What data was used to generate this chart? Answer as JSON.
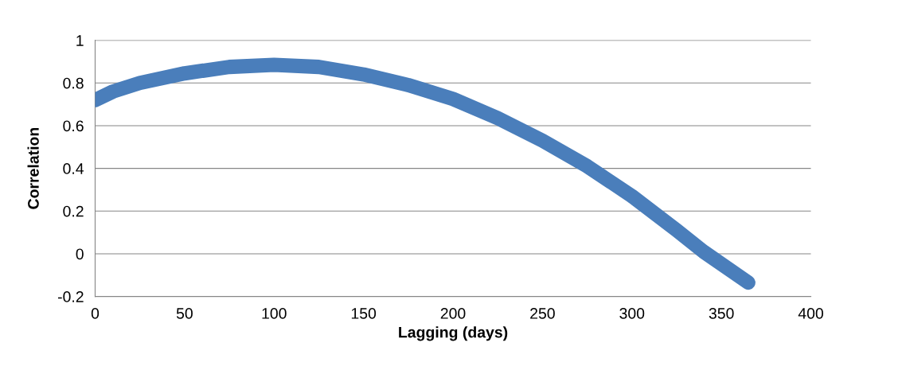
{
  "chart_data": {
    "type": "line",
    "xlabel": "Lagging (days)",
    "ylabel": "Correlation",
    "x": [
      0,
      10,
      25,
      50,
      75,
      100,
      125,
      150,
      175,
      200,
      225,
      250,
      275,
      300,
      325,
      340,
      365
    ],
    "series": [
      {
        "color": "#4a7ebb",
        "values": [
          0.72,
          0.76,
          0.8,
          0.845,
          0.875,
          0.885,
          0.875,
          0.84,
          0.79,
          0.725,
          0.635,
          0.53,
          0.41,
          0.27,
          0.11,
          0.01,
          -0.135
        ]
      }
    ],
    "xlim": [
      0,
      400
    ],
    "xticks": [
      0,
      50,
      100,
      150,
      200,
      250,
      300,
      350,
      400
    ],
    "ylim": [
      -0.2,
      1
    ],
    "yticks": [
      -0.2,
      0,
      0.2,
      0.4,
      0.6,
      0.8,
      1
    ],
    "grid": "y",
    "line_style": "solid"
  }
}
